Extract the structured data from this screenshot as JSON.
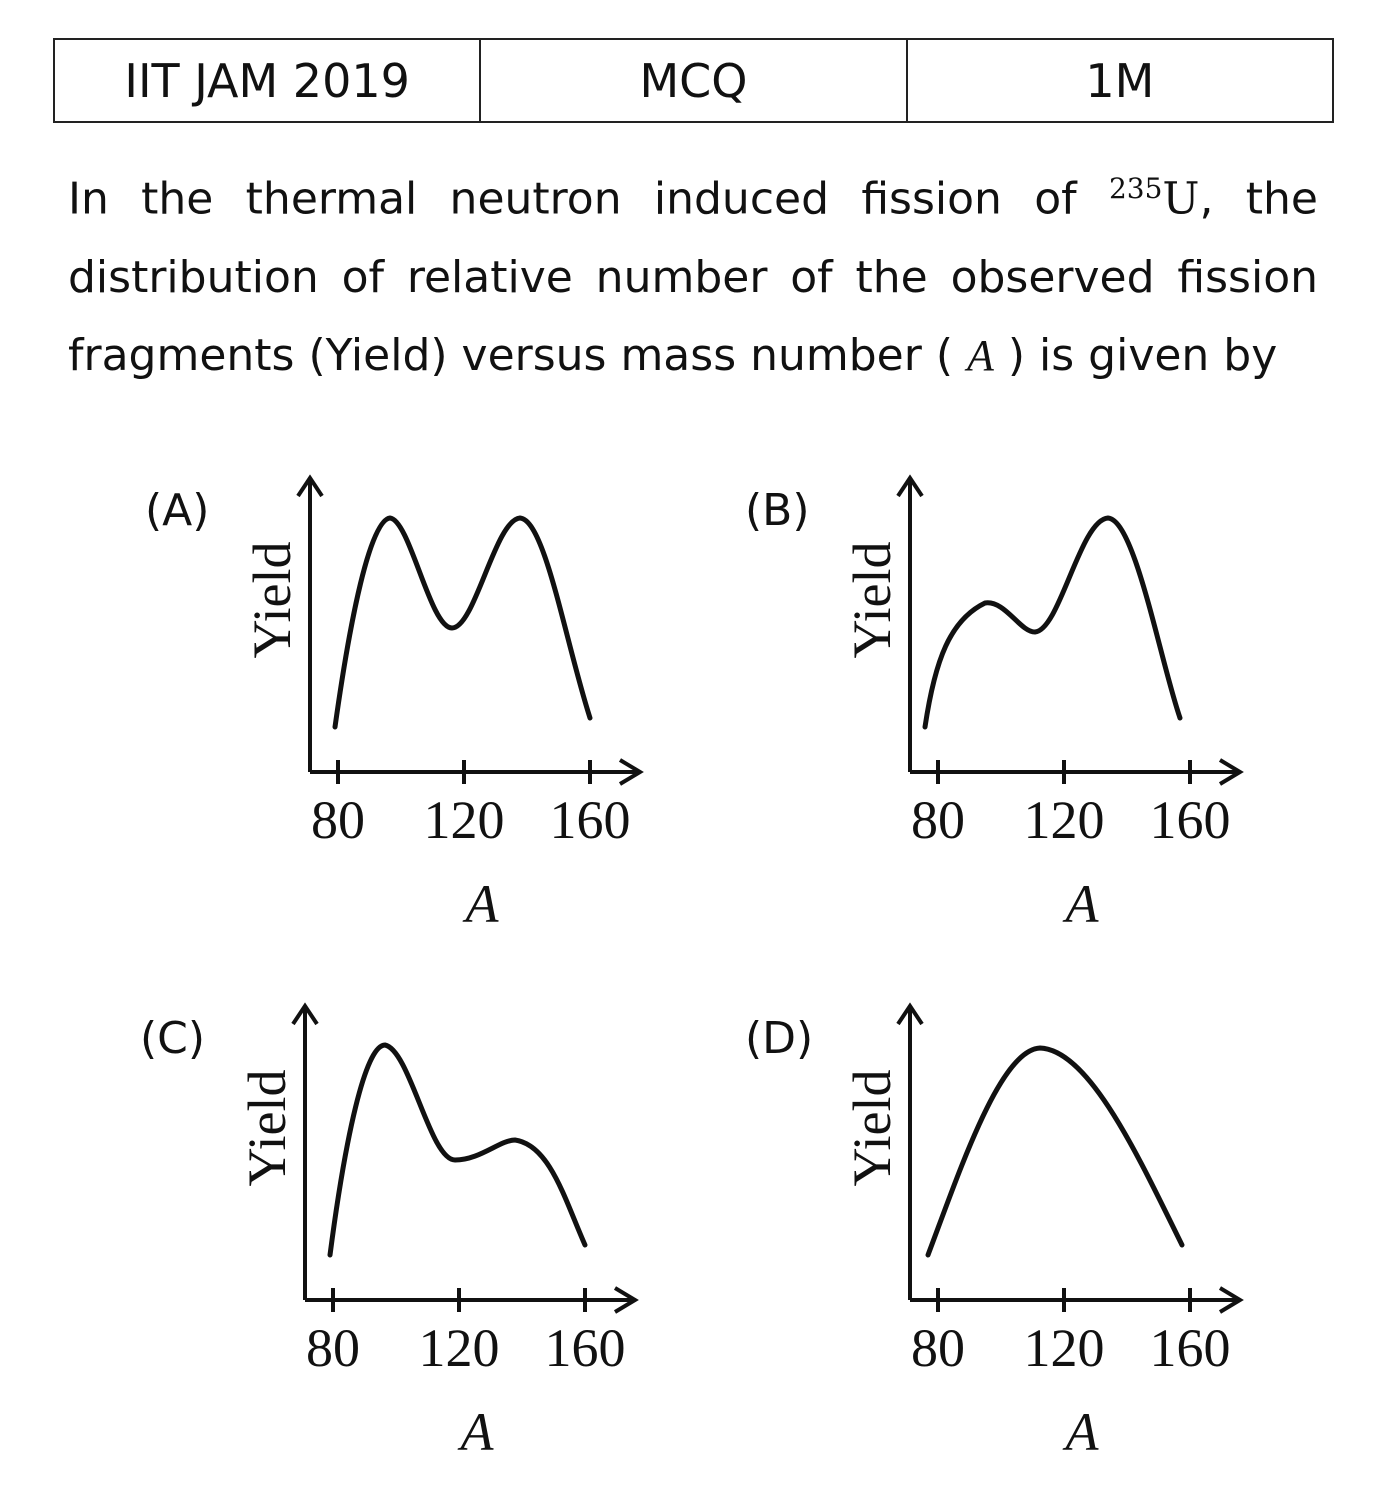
{
  "header": {
    "cells": [
      "IIT JAM 2019",
      "MCQ",
      "1M"
    ]
  },
  "question": {
    "intro": "In the thermal neutron induced fission of",
    "isotope_mass": "235",
    "isotope_symbol": "U",
    "middle": ", the distribution of relative number of the observed fission fragments (Yield) versus mass number (",
    "variable": "A",
    "end": ") is given by"
  },
  "options": [
    {
      "label": "(A)",
      "y_label": "Yield",
      "x_ticks": [
        80,
        120,
        160
      ],
      "x_label": "A"
    },
    {
      "label": "(B)",
      "y_label": "Yield",
      "x_ticks": [
        80,
        120,
        160
      ],
      "x_label": "A"
    },
    {
      "label": "(C)",
      "y_label": "Yield",
      "x_ticks": [
        80,
        120,
        160
      ],
      "x_label": "A"
    },
    {
      "label": "(D)",
      "y_label": "Yield",
      "x_ticks": [
        80,
        120,
        160
      ],
      "x_label": "A"
    }
  ]
}
